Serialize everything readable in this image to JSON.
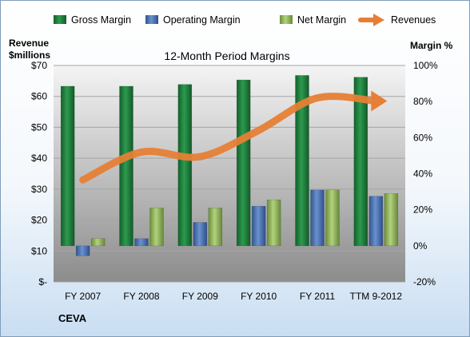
{
  "chart_data": {
    "type": "bar",
    "title": "12-Month Period Margins",
    "company": "CEVA",
    "categories": [
      "FY 2007",
      "FY 2008",
      "FY 2009",
      "FY 2010",
      "FY 2011",
      "TTM 9-2012"
    ],
    "series": [
      {
        "name": "Gross Margin",
        "axis": "right",
        "color": "#1f7a3a",
        "values": [
          88.5,
          88.5,
          89.5,
          92,
          94.5,
          93.5
        ]
      },
      {
        "name": "Operating Margin",
        "axis": "right",
        "color": "#4a73b5",
        "values": [
          -5.5,
          4,
          13,
          22,
          31,
          27.5
        ]
      },
      {
        "name": "Net Margin",
        "axis": "right",
        "color": "#8fb15a",
        "values": [
          4,
          21,
          21,
          25.5,
          31,
          29
        ]
      }
    ],
    "line_series": {
      "name": "Revenues",
      "axis": "left",
      "color": "#e67f35",
      "values": [
        33,
        42,
        40.5,
        49,
        59.5,
        58.5
      ]
    },
    "left_axis": {
      "label_line1": "Revenue",
      "label_line2": "$millions",
      "min": 0,
      "max": 70,
      "step": 10,
      "ticks": [
        "$-",
        "$10",
        "$20",
        "$30",
        "$40",
        "$50",
        "$60",
        "$70"
      ]
    },
    "right_axis": {
      "label": "Margin %",
      "min": -20,
      "max": 100,
      "step": 20,
      "ticks": [
        "-20%",
        "0%",
        "20%",
        "40%",
        "60%",
        "80%",
        "100%"
      ]
    },
    "grid": true,
    "legend_position": "top"
  }
}
